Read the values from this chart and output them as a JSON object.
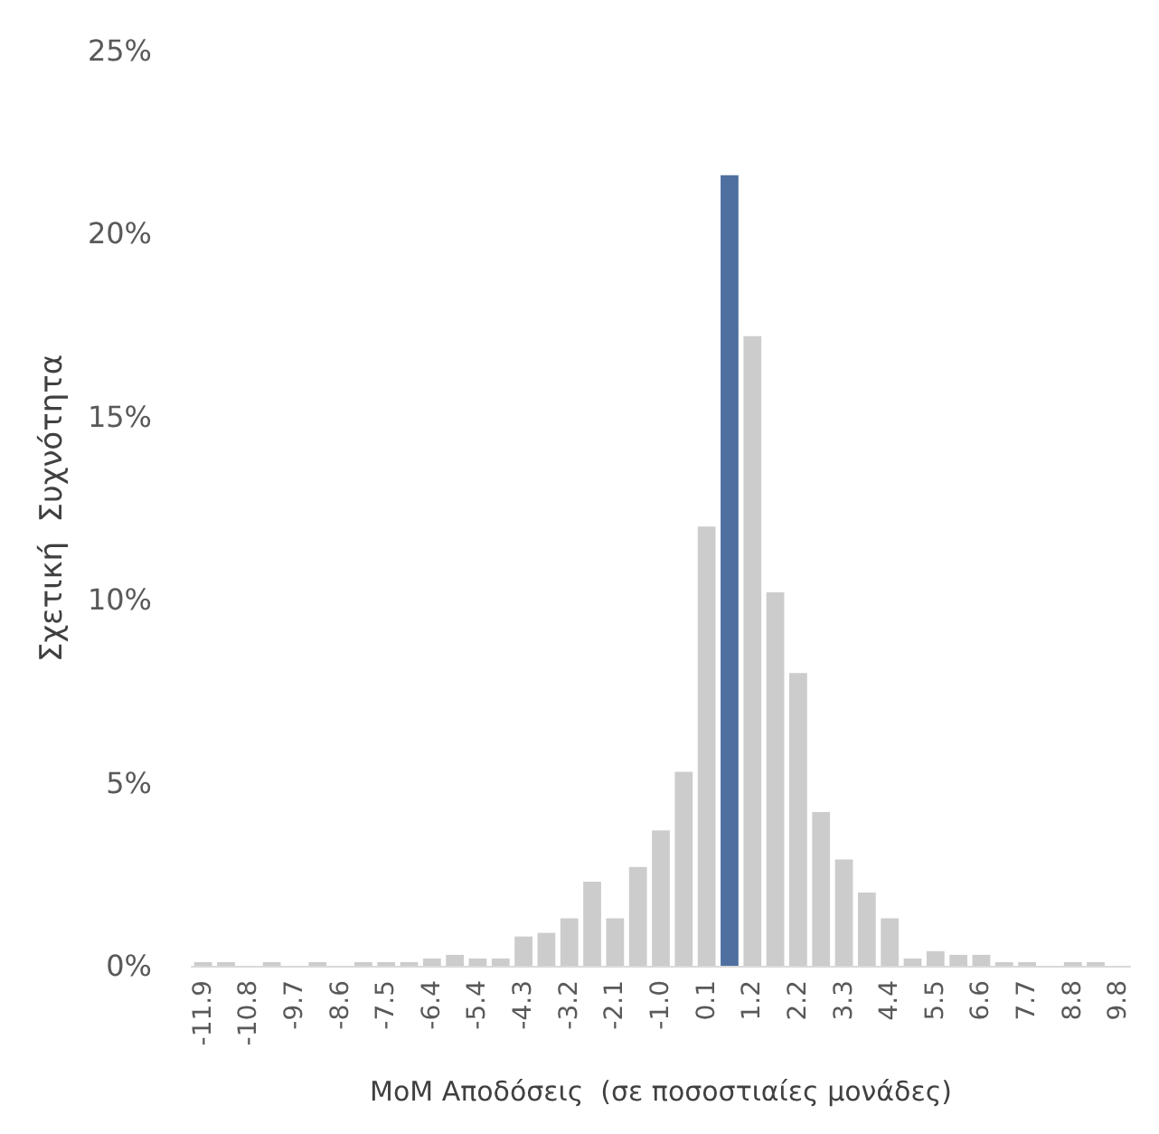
{
  "chart_data": {
    "type": "bar",
    "xlabel": "MoM Αποδόσεις  (σε ποσοστιαίες μονάδες)",
    "ylabel": "Σχετική  Συχνότητα",
    "categories": [
      "-11.9",
      null,
      "-10.8",
      null,
      "-9.7",
      null,
      "-8.6",
      null,
      "-7.5",
      null,
      "-6.4",
      null,
      "-5.4",
      null,
      "-4.3",
      null,
      "-3.2",
      null,
      "-2.1",
      null,
      "-1.0",
      null,
      "0.1",
      null,
      "1.2",
      null,
      "2.2",
      null,
      "3.3",
      null,
      "4.4",
      null,
      "5.5",
      null,
      "6.6",
      null,
      "7.7",
      null,
      "8.8",
      null,
      "9.8"
    ],
    "values": [
      0.1,
      0.1,
      0,
      0.1,
      0,
      0.1,
      0,
      0.1,
      0.1,
      0.1,
      0.2,
      0.3,
      0.2,
      0.2,
      0.8,
      0.9,
      1.3,
      2.3,
      1.3,
      2.7,
      3.7,
      5.3,
      12.0,
      21.6,
      17.2,
      10.2,
      8.0,
      4.2,
      2.9,
      2.0,
      1.3,
      0.2,
      0.4,
      0.3,
      0.3,
      0.1,
      0.1,
      0,
      0.1,
      0.1,
      0
    ],
    "colors": [
      "#cccccc",
      "#cccccc",
      "#cccccc",
      "#cccccc",
      "#cccccc",
      "#cccccc",
      "#cccccc",
      "#cccccc",
      "#cccccc",
      "#cccccc",
      "#cccccc",
      "#cccccc",
      "#cccccc",
      "#cccccc",
      "#cccccc",
      "#cccccc",
      "#cccccc",
      "#cccccc",
      "#cccccc",
      "#cccccc",
      "#cccccc",
      "#cccccc",
      "#cccccc",
      "#4f6fa1",
      "#cccccc",
      "#cccccc",
      "#cccccc",
      "#cccccc",
      "#cccccc",
      "#cccccc",
      "#cccccc",
      "#cccccc",
      "#cccccc",
      "#cccccc",
      "#cccccc",
      "#cccccc",
      "#cccccc",
      "#cccccc",
      "#cccccc",
      "#cccccc",
      "#cccccc"
    ],
    "ylim": [
      0,
      25
    ],
    "yticks": [
      {
        "value": 0,
        "label": "0%"
      },
      {
        "value": 5,
        "label": "5%"
      },
      {
        "value": 10,
        "label": "10%"
      },
      {
        "value": 15,
        "label": "15%"
      },
      {
        "value": 20,
        "label": "20%"
      },
      {
        "value": 25,
        "label": "25%"
      }
    ]
  }
}
